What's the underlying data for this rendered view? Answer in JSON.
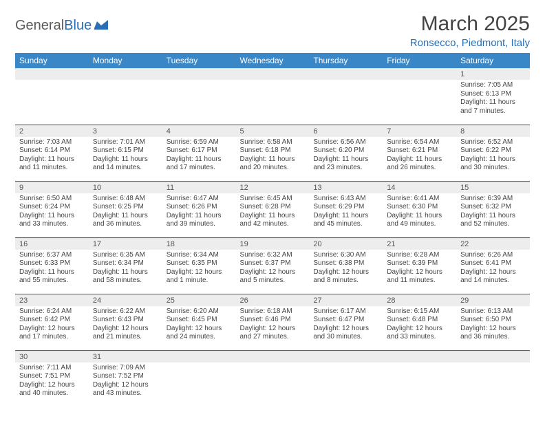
{
  "logo": {
    "text1": "General",
    "text2": "Blue"
  },
  "title": "March 2025",
  "location": "Ronsecco, Piedmont, Italy",
  "colors": {
    "header_bg": "#3a87c7",
    "header_fg": "#ffffff",
    "accent": "#2a6fb5",
    "daynum_bg": "#ededed",
    "text": "#444444"
  },
  "weekdays": [
    "Sunday",
    "Monday",
    "Tuesday",
    "Wednesday",
    "Thursday",
    "Friday",
    "Saturday"
  ],
  "weeks": [
    [
      null,
      null,
      null,
      null,
      null,
      null,
      {
        "n": "1",
        "sunrise": "7:05 AM",
        "sunset": "6:13 PM",
        "day_h": 11,
        "day_m": 7
      }
    ],
    [
      {
        "n": "2",
        "sunrise": "7:03 AM",
        "sunset": "6:14 PM",
        "day_h": 11,
        "day_m": 11
      },
      {
        "n": "3",
        "sunrise": "7:01 AM",
        "sunset": "6:15 PM",
        "day_h": 11,
        "day_m": 14
      },
      {
        "n": "4",
        "sunrise": "6:59 AM",
        "sunset": "6:17 PM",
        "day_h": 11,
        "day_m": 17
      },
      {
        "n": "5",
        "sunrise": "6:58 AM",
        "sunset": "6:18 PM",
        "day_h": 11,
        "day_m": 20
      },
      {
        "n": "6",
        "sunrise": "6:56 AM",
        "sunset": "6:20 PM",
        "day_h": 11,
        "day_m": 23
      },
      {
        "n": "7",
        "sunrise": "6:54 AM",
        "sunset": "6:21 PM",
        "day_h": 11,
        "day_m": 26
      },
      {
        "n": "8",
        "sunrise": "6:52 AM",
        "sunset": "6:22 PM",
        "day_h": 11,
        "day_m": 30
      }
    ],
    [
      {
        "n": "9",
        "sunrise": "6:50 AM",
        "sunset": "6:24 PM",
        "day_h": 11,
        "day_m": 33
      },
      {
        "n": "10",
        "sunrise": "6:48 AM",
        "sunset": "6:25 PM",
        "day_h": 11,
        "day_m": 36
      },
      {
        "n": "11",
        "sunrise": "6:47 AM",
        "sunset": "6:26 PM",
        "day_h": 11,
        "day_m": 39
      },
      {
        "n": "12",
        "sunrise": "6:45 AM",
        "sunset": "6:28 PM",
        "day_h": 11,
        "day_m": 42
      },
      {
        "n": "13",
        "sunrise": "6:43 AM",
        "sunset": "6:29 PM",
        "day_h": 11,
        "day_m": 45
      },
      {
        "n": "14",
        "sunrise": "6:41 AM",
        "sunset": "6:30 PM",
        "day_h": 11,
        "day_m": 49
      },
      {
        "n": "15",
        "sunrise": "6:39 AM",
        "sunset": "6:32 PM",
        "day_h": 11,
        "day_m": 52
      }
    ],
    [
      {
        "n": "16",
        "sunrise": "6:37 AM",
        "sunset": "6:33 PM",
        "day_h": 11,
        "day_m": 55
      },
      {
        "n": "17",
        "sunrise": "6:35 AM",
        "sunset": "6:34 PM",
        "day_h": 11,
        "day_m": 58
      },
      {
        "n": "18",
        "sunrise": "6:34 AM",
        "sunset": "6:35 PM",
        "day_h": 12,
        "day_m": 1
      },
      {
        "n": "19",
        "sunrise": "6:32 AM",
        "sunset": "6:37 PM",
        "day_h": 12,
        "day_m": 5
      },
      {
        "n": "20",
        "sunrise": "6:30 AM",
        "sunset": "6:38 PM",
        "day_h": 12,
        "day_m": 8
      },
      {
        "n": "21",
        "sunrise": "6:28 AM",
        "sunset": "6:39 PM",
        "day_h": 12,
        "day_m": 11
      },
      {
        "n": "22",
        "sunrise": "6:26 AM",
        "sunset": "6:41 PM",
        "day_h": 12,
        "day_m": 14
      }
    ],
    [
      {
        "n": "23",
        "sunrise": "6:24 AM",
        "sunset": "6:42 PM",
        "day_h": 12,
        "day_m": 17
      },
      {
        "n": "24",
        "sunrise": "6:22 AM",
        "sunset": "6:43 PM",
        "day_h": 12,
        "day_m": 21
      },
      {
        "n": "25",
        "sunrise": "6:20 AM",
        "sunset": "6:45 PM",
        "day_h": 12,
        "day_m": 24
      },
      {
        "n": "26",
        "sunrise": "6:18 AM",
        "sunset": "6:46 PM",
        "day_h": 12,
        "day_m": 27
      },
      {
        "n": "27",
        "sunrise": "6:17 AM",
        "sunset": "6:47 PM",
        "day_h": 12,
        "day_m": 30
      },
      {
        "n": "28",
        "sunrise": "6:15 AM",
        "sunset": "6:48 PM",
        "day_h": 12,
        "day_m": 33
      },
      {
        "n": "29",
        "sunrise": "6:13 AM",
        "sunset": "6:50 PM",
        "day_h": 12,
        "day_m": 36
      }
    ],
    [
      {
        "n": "30",
        "sunrise": "7:11 AM",
        "sunset": "7:51 PM",
        "day_h": 12,
        "day_m": 40
      },
      {
        "n": "31",
        "sunrise": "7:09 AM",
        "sunset": "7:52 PM",
        "day_h": 12,
        "day_m": 43
      },
      null,
      null,
      null,
      null,
      null
    ]
  ],
  "labels": {
    "sunrise": "Sunrise:",
    "sunset": "Sunset:",
    "daylight_prefix": "Daylight:",
    "hours_word": "hours",
    "and_word": "and",
    "minutes_word_singular": "minute",
    "minutes_word_plural": "minutes"
  }
}
